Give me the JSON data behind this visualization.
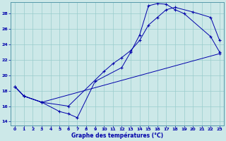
{
  "title": "Graphe des températures (°C)",
  "bg_color": "#cce8e8",
  "grid_color": "#99cccc",
  "line_color": "#0000aa",
  "xlim": [
    -0.5,
    23.5
  ],
  "ylim": [
    13.5,
    29.5
  ],
  "yticks": [
    14,
    16,
    18,
    20,
    22,
    24,
    26,
    28
  ],
  "xticks": [
    0,
    1,
    2,
    3,
    4,
    5,
    6,
    7,
    8,
    9,
    10,
    11,
    12,
    13,
    14,
    15,
    16,
    17,
    18,
    19,
    20,
    21,
    22,
    23
  ],
  "line_series": [
    {
      "x": [
        0,
        1,
        3,
        5,
        6,
        7,
        9,
        12,
        13,
        14,
        15,
        16,
        17,
        18,
        19,
        22,
        23
      ],
      "y": [
        18.5,
        17.3,
        16.5,
        15.3,
        15.0,
        14.5,
        19.2,
        21.0,
        23.0,
        25.2,
        29.0,
        29.3,
        29.2,
        28.5,
        28.0,
        25.0,
        23.0
      ]
    },
    {
      "x": [
        0,
        1,
        3,
        6,
        10,
        11,
        12,
        13,
        14,
        15,
        16,
        17,
        18,
        20,
        22,
        23
      ],
      "y": [
        18.5,
        17.3,
        16.5,
        16.0,
        20.5,
        21.5,
        22.3,
        23.2,
        24.5,
        26.5,
        27.5,
        28.5,
        28.8,
        28.2,
        27.5,
        24.5
      ]
    },
    {
      "x": [
        0,
        1,
        3,
        23
      ],
      "y": [
        18.5,
        17.3,
        16.5,
        22.8
      ]
    }
  ]
}
